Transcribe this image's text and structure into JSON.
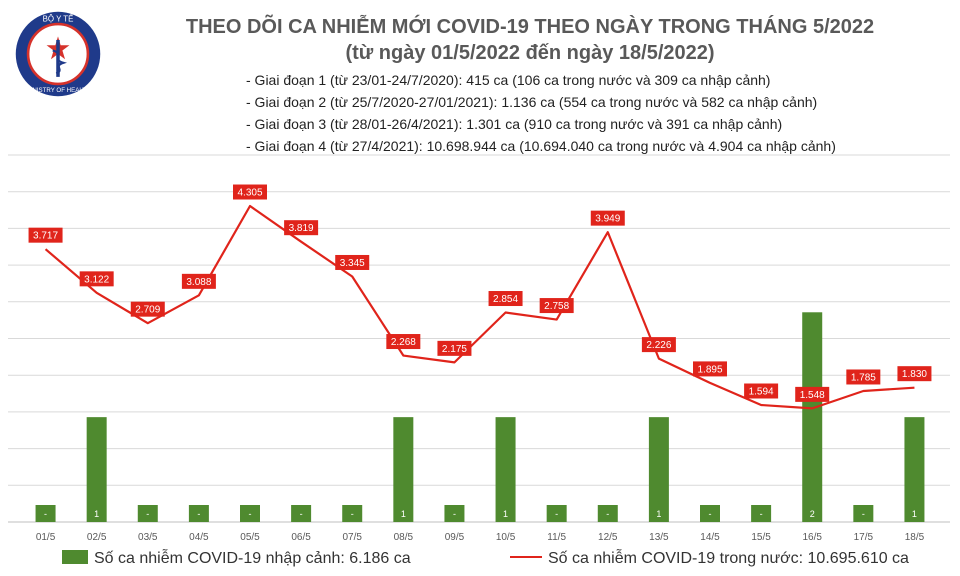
{
  "logo": {
    "top_text": "BỘ Y TẾ",
    "bottom_text": "MINISTRY OF HEALTH"
  },
  "title_line1": "THEO DÕI CA NHIỄM MỚI COVID-19 THEO NGÀY TRONG THÁNG 5/2022",
  "title_line2": "(từ ngày 01/5/2022 đến ngày 18/5/2022)",
  "phases": [
    "- Giai đoạn 1 (từ 23/01-24/7/2020): 415 ca (106 ca trong nước và 309 ca nhập cảnh)",
    "- Giai đoạn 2 (từ 25/7/2020-27/01/2021): 1.136 ca (554 ca trong nước và 582 ca nhập cảnh)",
    "- Giai đoạn 3 (từ 28/01-26/4/2021): 1.301 ca (910 ca trong nước và 391 ca nhập cảnh)",
    "- Giai đoạn 4 (từ 27/4/2021): 10.698.944 ca (10.694.040 ca trong nước và 4.904 ca nhập cảnh)"
  ],
  "legend": {
    "bar_label": "Số ca nhiễm COVID-19 nhập cảnh: 6.186 ca",
    "line_label": "Số ca nhiễm COVID-19 trong nước: 10.695.610 ca"
  },
  "colors": {
    "bar": "#4f8a2f",
    "line": "#e0241b",
    "label_bg": "#e0241b",
    "grid": "#d9d9d9",
    "title": "#595959"
  },
  "chart_data": {
    "type": "bar+line",
    "categories": [
      "01/5",
      "02/5",
      "03/5",
      "04/5",
      "05/5",
      "06/5",
      "07/5",
      "08/5",
      "09/5",
      "10/5",
      "11/5",
      "12/5",
      "13/5",
      "14/5",
      "15/5",
      "16/5",
      "17/5",
      "18/5"
    ],
    "series": [
      {
        "name": "Số ca nhiễm COVID-19 nhập cảnh: 6.186 ca",
        "type": "bar",
        "axis": "right",
        "values": [
          0,
          1,
          0,
          0,
          0,
          0,
          0,
          1,
          0,
          1,
          0,
          0,
          1,
          0,
          0,
          2,
          0,
          1
        ],
        "labels": [
          "-",
          "1",
          "-",
          "-",
          "-",
          "-",
          "-",
          "1",
          "-",
          "1",
          "-",
          "-",
          "1",
          "-",
          "-",
          "2",
          "-",
          "1"
        ]
      },
      {
        "name": "Số ca nhiễm COVID-19 trong nước: 10.695.610 ca",
        "type": "line",
        "axis": "left",
        "values": [
          3717,
          3122,
          2709,
          3088,
          4305,
          3819,
          3345,
          2268,
          2175,
          2854,
          2758,
          3949,
          2226,
          1895,
          1594,
          1548,
          1785,
          1830
        ],
        "labels": [
          "3.717",
          "3.122",
          "2.709",
          "3.088",
          "4.305",
          "3.819",
          "3.345",
          "2.268",
          "2.175",
          "2.854",
          "2.758",
          "3.949",
          "2.226",
          "1.895",
          "1.594",
          "1.548",
          "1.785",
          "1.830"
        ]
      }
    ],
    "y_left_range": [
      0,
      5000
    ],
    "y_right_range": [
      0,
      3.5
    ],
    "grid": true,
    "legend_position": "bottom"
  }
}
